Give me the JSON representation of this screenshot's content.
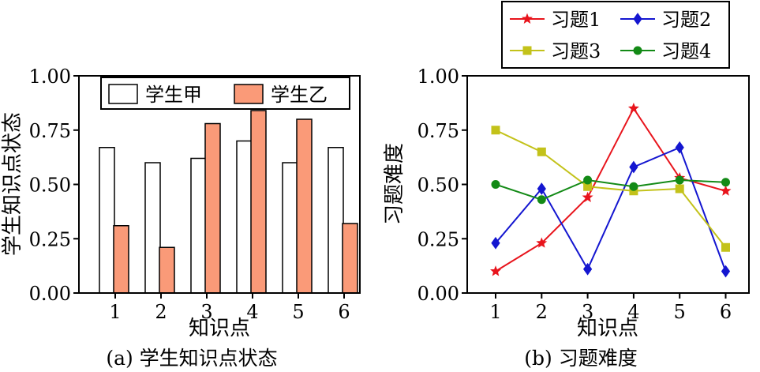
{
  "chart_data": [
    {
      "type": "bar",
      "caption": "(a) 学生知识点状态",
      "xlabel": "知识点",
      "ylabel": "学生知识点状态",
      "categories": [
        "1",
        "2",
        "3",
        "4",
        "5",
        "6"
      ],
      "ylim": [
        0,
        1
      ],
      "yticks": [
        "0.00",
        "0.25",
        "0.50",
        "0.75",
        "1.00"
      ],
      "legend_position": "top",
      "grid": false,
      "series": [
        {
          "name": "学生甲",
          "color": "#ffffff",
          "values": [
            0.67,
            0.6,
            0.62,
            0.7,
            0.6,
            0.67
          ]
        },
        {
          "name": "学生乙",
          "color": "#fa9a78",
          "values": [
            0.31,
            0.21,
            0.78,
            0.84,
            0.8,
            0.32
          ]
        }
      ]
    },
    {
      "type": "line",
      "caption": "(b) 习题难度",
      "xlabel": "知识点",
      "ylabel": "习题难度",
      "x": [
        "1",
        "2",
        "3",
        "4",
        "5",
        "6"
      ],
      "ylim": [
        0,
        1
      ],
      "yticks": [
        "0.00",
        "0.25",
        "0.50",
        "0.75",
        "1.00"
      ],
      "legend_position": "above-plot",
      "grid": false,
      "series": [
        {
          "name": "习题1",
          "color": "#e8141c",
          "marker": "star",
          "values": [
            0.1,
            0.23,
            0.44,
            0.85,
            0.53,
            0.47
          ]
        },
        {
          "name": "习题2",
          "color": "#1416d0",
          "marker": "diamond",
          "values": [
            0.23,
            0.48,
            0.11,
            0.58,
            0.67,
            0.1
          ]
        },
        {
          "name": "习题3",
          "color": "#c3c21a",
          "marker": "square",
          "values": [
            0.75,
            0.65,
            0.49,
            0.47,
            0.48,
            0.21
          ]
        },
        {
          "name": "习题4",
          "color": "#138a16",
          "marker": "circle",
          "values": [
            0.5,
            0.43,
            0.52,
            0.49,
            0.52,
            0.51
          ]
        }
      ]
    }
  ]
}
